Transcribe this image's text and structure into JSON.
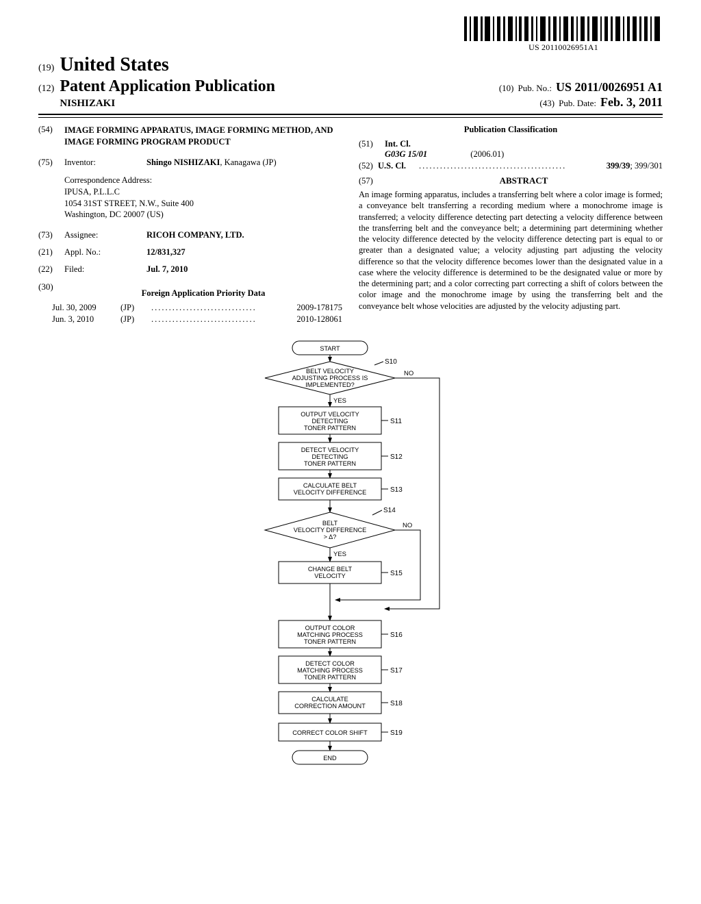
{
  "barcode_label": "US 20110026951A1",
  "header": {
    "authority_code": "(19)",
    "authority": "United States",
    "kind_code": "(12)",
    "kind": "Patent Application Publication",
    "author": "NISHIZAKI"
  },
  "pub": {
    "pubno_code": "(10)",
    "pubno_label": "Pub. No.:",
    "pubno_value": "US 2011/0026951 A1",
    "date_code": "(43)",
    "date_label": "Pub. Date:",
    "date_value": "Feb. 3, 2011"
  },
  "left": {
    "title_code": "(54)",
    "title": "IMAGE FORMING APPARATUS, IMAGE FORMING METHOD, AND IMAGE FORMING PROGRAM PRODUCT",
    "inventor_code": "(75)",
    "inventor_label": "Inventor:",
    "inventor_value": "Shingo NISHIZAKI, Kanagawa (JP)",
    "corr_label": "Correspondence Address:",
    "corr_lines": [
      "IPUSA, P.L.L.C",
      "1054 31ST STREET, N.W., Suite 400",
      "Washington, DC 20007 (US)"
    ],
    "assignee_code": "(73)",
    "assignee_label": "Assignee:",
    "assignee_value": "RICOH COMPANY, LTD.",
    "appl_code": "(21)",
    "appl_label": "Appl. No.:",
    "appl_value": "12/831,327",
    "filed_code": "(22)",
    "filed_label": "Filed:",
    "filed_value": "Jul. 7, 2010",
    "fap_code": "(30)",
    "fap_heading": "Foreign Application Priority Data",
    "fap": [
      {
        "date": "Jul. 30, 2009",
        "cc": "(JP)",
        "num": "2009-178175"
      },
      {
        "date": "Jun. 3, 2010",
        "cc": "(JP)",
        "num": "2010-128061"
      }
    ]
  },
  "right": {
    "pubclass_heading": "Publication Classification",
    "intcl_code": "(51)",
    "intcl_label": "Int. Cl.",
    "intcl_symbol": "G03G 15/01",
    "intcl_edition": "(2006.01)",
    "uscl_code": "(52)",
    "uscl_label": "U.S. Cl.",
    "uscl_primary": "399/39",
    "uscl_secondary": "; 399/301",
    "abs_code": "(57)",
    "abs_heading": "ABSTRACT",
    "abs_text": "An image forming apparatus, includes a transferring belt where a color image is formed; a conveyance belt transferring a recording medium where a monochrome image is transferred; a velocity difference detecting part detecting a velocity difference between the transferring belt and the conveyance belt; a determining part determining whether the velocity difference detected by the velocity difference detecting part is equal to or greater than a designated value; a velocity adjusting part adjusting the velocity difference so that the velocity difference becomes lower than the designated value in a case where the velocity difference is determined to be the designated value or more by the determining part; and a color correcting part correcting a shift of colors between the color image and the monochrome image by using the transferring belt and the conveyance belt whose velocities are adjusted by the velocity adjusting part."
  },
  "flow": {
    "start": "START",
    "end": "END",
    "yes": "YES",
    "no": "NO",
    "s10": {
      "label": "S10",
      "text": [
        "BELT VELOCITY",
        "ADJUSTING PROCESS IS",
        "IMPLEMENTED?"
      ]
    },
    "s11": {
      "label": "S11",
      "text": [
        "OUTPUT VELOCITY",
        "DETECTING",
        "TONER PATTERN"
      ]
    },
    "s12": {
      "label": "S12",
      "text": [
        "DETECT VELOCITY",
        "DETECTING",
        "TONER PATTERN"
      ]
    },
    "s13": {
      "label": "S13",
      "text": [
        "CALCULATE BELT",
        "VELOCITY DIFFERENCE"
      ]
    },
    "s14": {
      "label": "S14",
      "text": [
        "BELT",
        "VELOCITY DIFFERENCE",
        "> Δ?"
      ]
    },
    "s15": {
      "label": "S15",
      "text": [
        "CHANGE BELT",
        "VELOCITY"
      ]
    },
    "s16": {
      "label": "S16",
      "text": [
        "OUTPUT COLOR",
        "MATCHING PROCESS",
        "TONER PATTERN"
      ]
    },
    "s17": {
      "label": "S17",
      "text": [
        "DETECT COLOR",
        "MATCHING PROCESS",
        "TONER PATTERN"
      ]
    },
    "s18": {
      "label": "S18",
      "text": [
        "CALCULATE",
        "CORRECTION AMOUNT"
      ]
    },
    "s19": {
      "label": "S19",
      "text": [
        "CORRECT COLOR SHIFT"
      ]
    }
  }
}
